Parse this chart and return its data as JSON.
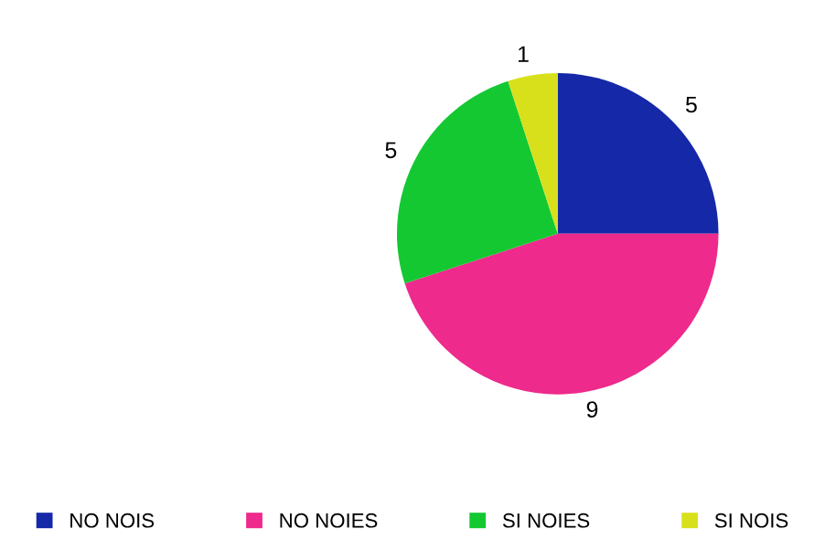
{
  "chart_data": {
    "type": "pie",
    "categories": [
      "NO NOIS",
      "NO NOIES",
      "SI NOIES",
      "SI NOIS"
    ],
    "values": [
      5,
      9,
      5,
      1
    ],
    "colors": [
      "#1428a8",
      "#ee2a8c",
      "#14c832",
      "#d8e01c"
    ],
    "data_labels": true,
    "legend": "bottom"
  }
}
